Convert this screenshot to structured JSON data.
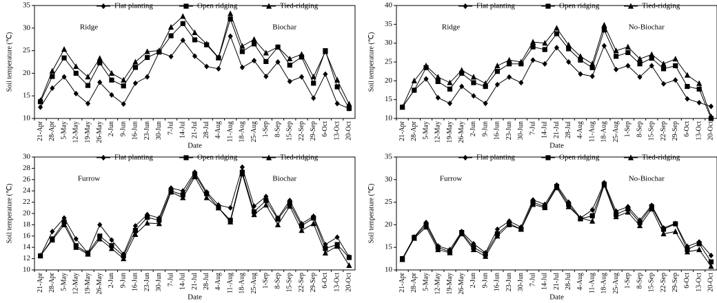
{
  "chart_data": [
    {
      "type": "line",
      "annotations": [
        "Ridge",
        "Biochar"
      ],
      "x_label": "Date",
      "y_label": "Soil temperature (℃)",
      "categories": [
        "21-Apr",
        "28-Apr",
        "5-May",
        "12-May",
        "19-May",
        "26-May",
        "2-Jun",
        "9-Jun",
        "16-Jun",
        "23-Jun",
        "30-Jun",
        "7-Jul",
        "14-Jul",
        "21-Jul",
        "28-Jul",
        "4-Aug",
        "11-Aug",
        "18-Aug",
        "25-Aug",
        "1-Sep",
        "8-Sep",
        "15-Sep",
        "22-Sep",
        "29-Sep",
        "6-Oct",
        "13-Oct",
        "20-Oct"
      ],
      "series": [
        {
          "name": "Flat planting",
          "color": "#000000",
          "marker": "diamond",
          "values": [
            12.5,
            16.7,
            19.2,
            15.5,
            13.3,
            18,
            15.2,
            13.2,
            17.8,
            19.2,
            24.7,
            23.7,
            27.3,
            23.8,
            21.5,
            21,
            28.2,
            21.3,
            22.8,
            19.3,
            22.5,
            18.2,
            19.2,
            14.5,
            19.8,
            13.3,
            12.2
          ]
        },
        {
          "name": "Open ridging",
          "color": "#000000",
          "marker": "square",
          "values": [
            13.7,
            19.3,
            23.4,
            20,
            17.3,
            22.3,
            18.5,
            17.2,
            21.3,
            23.5,
            24.7,
            28.3,
            31,
            27.4,
            26.3,
            23.4,
            32,
            24.8,
            26.5,
            22.6,
            25.8,
            21.8,
            23.6,
            17.8,
            25,
            17,
            12.2
          ]
        },
        {
          "name": "Tied-ridging",
          "color": "#000000",
          "marker": "triangle",
          "values": [
            14,
            20.5,
            25.3,
            21.5,
            19.2,
            23.3,
            20,
            18.5,
            22.5,
            24.8,
            25,
            30.2,
            32.6,
            29,
            26.5,
            23.5,
            33.2,
            26,
            27.5,
            24.5,
            25.8,
            23.2,
            24.2,
            19.2,
            24.8,
            18.5,
            13.2
          ]
        }
      ],
      "ylim": [
        10,
        35
      ],
      "yticks": [
        10,
        15,
        20,
        25,
        30,
        35
      ]
    },
    {
      "type": "line",
      "annotations": [
        "Ridge",
        "No-Biochar"
      ],
      "x_label": "Date",
      "y_label": "Soil temperature (℃)",
      "categories": [
        "21-Apr",
        "28-Apr",
        "5-May",
        "12-May",
        "19-May",
        "26-May",
        "2-Jun",
        "9-Jun",
        "16-Jun",
        "23-Jun",
        "30-Jun",
        "7-Jul",
        "14-Jul",
        "21-Jul",
        "28-Jul",
        "4-Aug",
        "11-Aug",
        "18-Aug",
        "25-Aug",
        "1-Sep",
        "8-Sep",
        "15-Sep",
        "22-Sep",
        "29-Sep",
        "6-Oct",
        "13-Oct",
        "20-Oct"
      ],
      "series": [
        {
          "name": "Flat planting",
          "color": "#000000",
          "marker": "diamond",
          "values": [
            13,
            17.5,
            20.5,
            15.5,
            14,
            18.5,
            16,
            14,
            19,
            21,
            19.5,
            25.5,
            24.5,
            28.8,
            25,
            21.8,
            21.2,
            29.3,
            23,
            24,
            21,
            24,
            19.2,
            20.2,
            15.2,
            14.2,
            13.2
          ]
        },
        {
          "name": "Open ridging",
          "color": "#000000",
          "marker": "square",
          "values": [
            13,
            17.5,
            23.5,
            19.8,
            17.8,
            22,
            19.5,
            18.5,
            22.5,
            24.5,
            24.5,
            29,
            28.3,
            32.5,
            28.5,
            25.5,
            23.5,
            33.5,
            26.5,
            27.5,
            24.5,
            26,
            23.2,
            24,
            18.5,
            17.8,
            10
          ]
        },
        {
          "name": "Tied-ridging",
          "color": "#000000",
          "marker": "triangle",
          "values": [
            13,
            20,
            24,
            21,
            19.5,
            22.8,
            21,
            19.3,
            24,
            25.5,
            25,
            30.3,
            30,
            34,
            29.5,
            26.5,
            24.5,
            34.8,
            28,
            29,
            25.8,
            27,
            24.5,
            25.8,
            21.5,
            19.3,
            10.5
          ]
        }
      ],
      "ylim": [
        10,
        40
      ],
      "yticks": [
        10,
        15,
        20,
        25,
        30,
        35,
        40
      ]
    },
    {
      "type": "line",
      "annotations": [
        "Furrow",
        "Biochar"
      ],
      "x_label": "Date",
      "y_label": "Soil temperature (℃)",
      "categories": [
        "21-Apr",
        "28-Apr",
        "5-May",
        "12-May",
        "19-May",
        "26-May",
        "2-Jun",
        "9-Jun",
        "16-Jun",
        "23-Jun",
        "30-Jun",
        "7-Jul",
        "14-Jul",
        "21-Jul",
        "28-Jul",
        "4-Aug",
        "11-Aug",
        "18-Aug",
        "25-Aug",
        "1-Sep",
        "8-Sep",
        "15-Sep",
        "22-Sep",
        "29-Sep",
        "6-Oct",
        "13-Oct",
        "20-Oct"
      ],
      "series": [
        {
          "name": "Flat planting",
          "color": "#000000",
          "marker": "diamond",
          "values": [
            12.5,
            16.8,
            19.2,
            15.5,
            13,
            18,
            15.3,
            12.8,
            17.8,
            19.8,
            19.2,
            24.5,
            24,
            27.3,
            23.8,
            21.5,
            21,
            28.2,
            21.3,
            23,
            19.2,
            22.3,
            18.2,
            19.5,
            14.5,
            15.8,
            12.3
          ]
        },
        {
          "name": "Open ridging",
          "color": "#000000",
          "marker": "square",
          "values": [
            12.5,
            15.5,
            18.5,
            14.3,
            13,
            16,
            14.3,
            12.5,
            17,
            19.3,
            18.8,
            24,
            23.3,
            27,
            23.5,
            21,
            18.8,
            27.3,
            20.3,
            22.3,
            19,
            21.8,
            17.8,
            19.2,
            13.8,
            14.5,
            12.2
          ]
        },
        {
          "name": "Tied-ridging",
          "color": "#000000",
          "marker": "triangle",
          "values": [
            12.5,
            15.3,
            18,
            14,
            12.8,
            15.5,
            13.8,
            12,
            16.3,
            18.3,
            18.2,
            23.8,
            22.8,
            26.5,
            22.8,
            21,
            18.5,
            27,
            19.8,
            21.5,
            18,
            21.3,
            17,
            18.2,
            13,
            14.2,
            10.8
          ]
        }
      ],
      "ylim": [
        10,
        30
      ],
      "yticks": [
        10,
        12,
        14,
        16,
        18,
        20,
        22,
        24,
        26,
        28,
        30
      ]
    },
    {
      "type": "line",
      "annotations": [
        "Furrow",
        "No-Biochar"
      ],
      "x_label": "Date",
      "y_label": "Soil temperature (℃)",
      "categories": [
        "21-Apr",
        "28-Apr",
        "5-May",
        "12-May",
        "19-May",
        "26-May",
        "2-Jun",
        "9-Jun",
        "16-Jun",
        "23-Jun",
        "30-Jun",
        "7-Jul",
        "14-Jul",
        "21-Jul",
        "28-Jul",
        "4-Aug",
        "11-Aug",
        "18-Aug",
        "25-Aug",
        "1-Sep",
        "8-Sep",
        "15-Sep",
        "22-Sep",
        "29-Sep",
        "6-Oct",
        "13-Oct",
        "20-Oct"
      ],
      "series": [
        {
          "name": "Flat planting",
          "color": "#000000",
          "marker": "diamond",
          "values": [
            12.5,
            17.3,
            20.5,
            15.3,
            14.5,
            18.5,
            15.8,
            13.8,
            19,
            20.8,
            19.5,
            25.5,
            24.5,
            28.8,
            25,
            21.5,
            23.3,
            29.3,
            23,
            24,
            21,
            24.3,
            19.3,
            20.3,
            15.2,
            16.2,
            13.2
          ]
        },
        {
          "name": "Open ridging",
          "color": "#000000",
          "marker": "square",
          "values": [
            12.5,
            17.2,
            20,
            15,
            14,
            18.3,
            15,
            13.5,
            18,
            20.3,
            19,
            25,
            24,
            28.5,
            24.5,
            21.3,
            22,
            29,
            22.3,
            23.5,
            20.5,
            24,
            19,
            20.2,
            14.5,
            15.8,
            11.8
          ]
        },
        {
          "name": "Tied-ridging",
          "color": "#000000",
          "marker": "triangle",
          "values": [
            12.3,
            17,
            19.5,
            14.5,
            13.8,
            18,
            14.5,
            13,
            17.5,
            20,
            19,
            24.5,
            23.8,
            28.2,
            24,
            21.5,
            20.8,
            28.8,
            21.8,
            22.8,
            19.8,
            23.5,
            18,
            18.5,
            14,
            14.5,
            10.8
          ]
        }
      ],
      "ylim": [
        10,
        35
      ],
      "yticks": [
        10,
        15,
        20,
        25,
        30,
        35
      ]
    }
  ]
}
